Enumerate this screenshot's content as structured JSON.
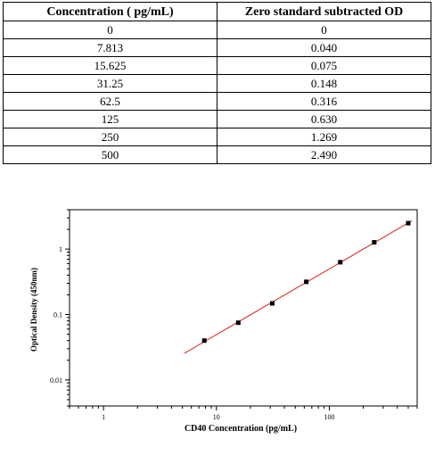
{
  "table": {
    "headers": [
      "Concentration ( pg/mL)",
      "Zero standard subtracted OD"
    ],
    "rows": [
      [
        "0",
        "0"
      ],
      [
        "7.813",
        "0.040"
      ],
      [
        "15.625",
        "0.075"
      ],
      [
        "31.25",
        "0.148"
      ],
      [
        "62.5",
        "0.316"
      ],
      [
        "125",
        "0.630"
      ],
      [
        "250",
        "1.269"
      ],
      [
        "500",
        "2.490"
      ]
    ]
  },
  "chart_data": {
    "type": "scatter",
    "title": "",
    "xlabel": "CD40 Concentration (pg/mL)",
    "ylabel": "Optical Density (450nm)",
    "x_scale": "log",
    "y_scale": "log",
    "xlim": [
      0.5,
      600
    ],
    "ylim": [
      0.004,
      4
    ],
    "x_ticks": [
      1,
      10,
      100
    ],
    "x_tick_labels": [
      "1",
      "10",
      "100"
    ],
    "y_ticks": [
      0.01,
      0.1,
      1
    ],
    "y_tick_labels": [
      "0.01",
      "0.1",
      "1"
    ],
    "grid": false,
    "legend": "none",
    "series": [
      {
        "x": [
          7.813,
          15.625,
          31.25,
          62.5,
          125,
          250,
          500
        ],
        "y": [
          0.04,
          0.075,
          0.148,
          0.316,
          0.63,
          1.269,
          2.49
        ],
        "color": "#000000"
      }
    ],
    "fit_line": {
      "x_range": [
        5.2,
        540
      ],
      "color": "#e02020"
    }
  }
}
